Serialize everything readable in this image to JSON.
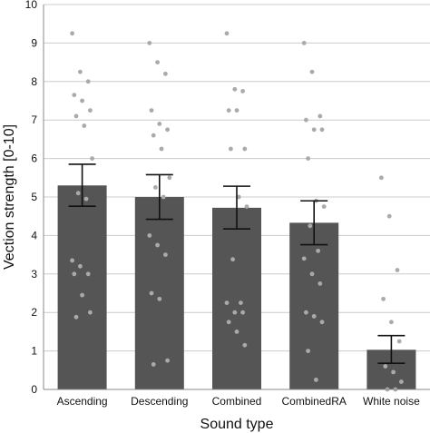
{
  "chart_data": {
    "type": "bar",
    "xlabel": "Sound type",
    "ylabel": "Vection strength [0-10]",
    "ylim": [
      0,
      10
    ],
    "yticks": [
      0,
      1,
      2,
      3,
      4,
      5,
      6,
      7,
      8,
      9,
      10
    ],
    "grid": true,
    "categories": [
      "Ascending",
      "Descending",
      "Combined",
      "CombinedRA",
      "White noise"
    ],
    "values": [
      5.3,
      5.0,
      4.72,
      4.33,
      1.03
    ],
    "error_low": [
      4.76,
      4.42,
      4.17,
      3.76,
      0.68
    ],
    "error_high": [
      5.85,
      5.58,
      5.28,
      4.9,
      1.4
    ],
    "bar_color": "#555555",
    "point_color": "#aaaaaa",
    "points": [
      [
        9.25,
        8.25,
        8.0,
        7.65,
        7.5,
        7.25,
        7.1,
        6.85,
        6.0,
        5.1,
        4.95,
        3.35,
        3.2,
        3.0,
        3.0,
        2.45,
        2.0,
        1.88
      ],
      [
        9.0,
        8.5,
        8.2,
        7.25,
        6.9,
        6.75,
        6.6,
        6.25,
        5.5,
        5.25,
        5.0,
        4.0,
        3.75,
        3.5,
        2.5,
        2.35,
        0.75,
        0.65
      ],
      [
        9.25,
        7.8,
        7.75,
        7.25,
        7.25,
        6.25,
        6.25,
        5.0,
        4.75,
        3.38,
        2.25,
        2.25,
        2.0,
        2.0,
        1.75,
        1.5,
        1.15
      ],
      [
        9.0,
        8.25,
        7.1,
        7.0,
        6.75,
        6.75,
        6.0,
        4.9,
        4.75,
        4.25,
        3.6,
        3.4,
        3.0,
        2.75,
        2.0,
        1.9,
        1.75,
        1.0,
        0.25
      ],
      [
        5.5,
        4.5,
        3.1,
        2.35,
        1.75,
        1.25,
        0.6,
        0.45,
        0.2,
        0.0,
        0.0
      ]
    ]
  }
}
